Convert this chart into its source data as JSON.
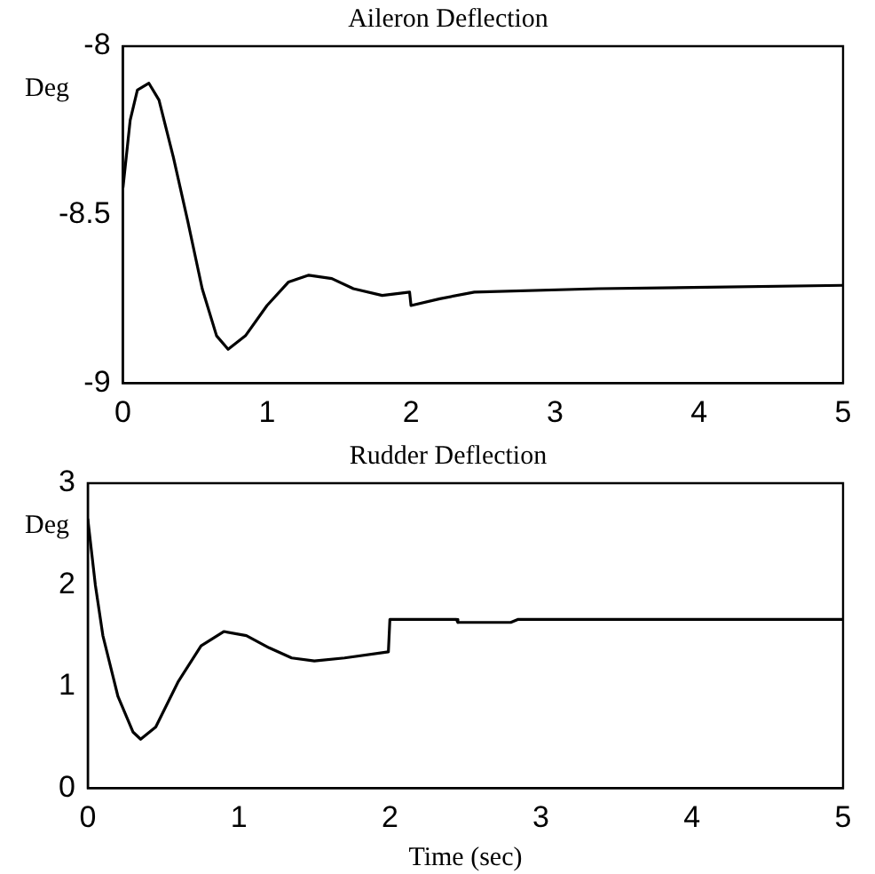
{
  "chart_data": [
    {
      "type": "line",
      "title": "Aileron Deflection",
      "ylabel": "Deg",
      "grid": false,
      "legend": false,
      "marker": "none",
      "line_style": "solid",
      "xlim": [
        0,
        5
      ],
      "xticks": [
        0,
        1,
        2,
        3,
        4,
        5
      ],
      "ylim": [
        -9,
        -8
      ],
      "yticks": [
        -9,
        -8.5,
        -8
      ],
      "series": [
        {
          "color": "#000000",
          "x": [
            0,
            0.05,
            0.1,
            0.18,
            0.25,
            0.35,
            0.45,
            0.55,
            0.65,
            0.73,
            0.85,
            1.0,
            1.15,
            1.29,
            1.45,
            1.6,
            1.8,
            1.99,
            2.0,
            2.2,
            2.44,
            3.3,
            5
          ],
          "values": [
            -8.42,
            -8.22,
            -8.13,
            -8.11,
            -8.16,
            -8.33,
            -8.52,
            -8.72,
            -8.86,
            -8.9,
            -8.86,
            -8.77,
            -8.7,
            -8.68,
            -8.69,
            -8.72,
            -8.74,
            -8.73,
            -8.77,
            -8.75,
            -8.73,
            -8.72,
            -8.71
          ]
        }
      ]
    },
    {
      "type": "line",
      "title": "Rudder Deflection",
      "ylabel": "Deg",
      "xlabel": "Time (sec)",
      "grid": false,
      "legend": false,
      "marker": "none",
      "line_style": "solid",
      "xlim": [
        0,
        5
      ],
      "xticks": [
        0,
        1,
        2,
        3,
        4,
        5
      ],
      "ylim": [
        0,
        3
      ],
      "yticks": [
        0,
        1,
        2,
        3
      ],
      "series": [
        {
          "color": "#000000",
          "x": [
            0,
            0.05,
            0.1,
            0.2,
            0.3,
            0.35,
            0.45,
            0.6,
            0.75,
            0.9,
            1.05,
            1.2,
            1.35,
            1.5,
            1.7,
            1.99,
            2.0,
            2.44,
            2.45,
            2.8,
            2.85,
            5
          ],
          "values": [
            2.65,
            2.0,
            1.5,
            0.9,
            0.55,
            0.48,
            0.6,
            1.05,
            1.4,
            1.54,
            1.5,
            1.38,
            1.28,
            1.25,
            1.28,
            1.34,
            1.66,
            1.66,
            1.63,
            1.63,
            1.66,
            1.66
          ]
        }
      ]
    }
  ]
}
